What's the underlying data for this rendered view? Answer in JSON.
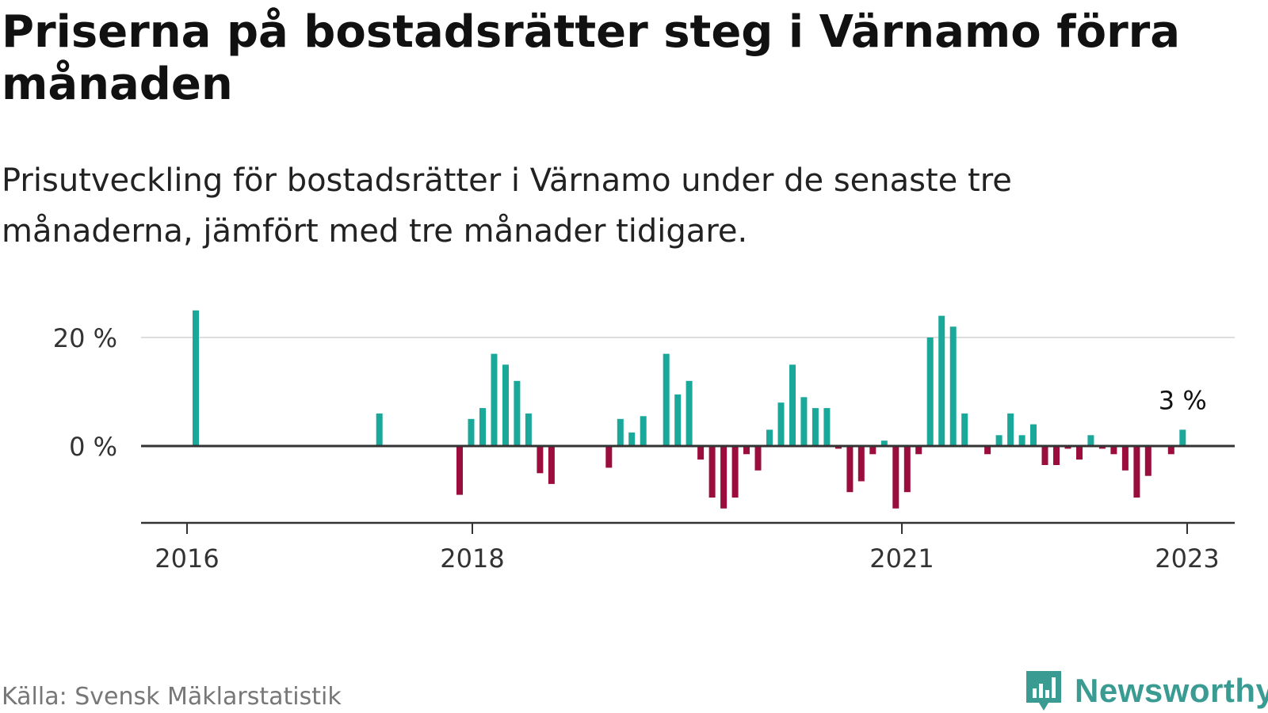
{
  "title": "Priserna på bostadsrätter steg i Värnamo förra månaden",
  "subtitle": "Prisutveckling för bostadsrätter i Värnamo under de senaste tre månaderna, jämfört med tre månader tidigare.",
  "source": "Källa: Svensk Mäklarstatistik",
  "brand": "Newsworthy",
  "colors": {
    "positive": "#1aa89a",
    "negative": "#9b0d3c",
    "grid": "#dddddd",
    "axis": "#333333",
    "brand": "#3a9b92"
  },
  "chart_data": {
    "type": "bar",
    "ylim": [
      -13,
      25
    ],
    "yticks": [
      0,
      20
    ],
    "ytick_labels": [
      "0 %",
      "20 %"
    ],
    "xtick_labels": [
      "2016",
      "2018",
      "2021",
      "2023"
    ],
    "annotation": "3 %",
    "series": [
      {
        "name": "Prisutveckling",
        "values": [
          25,
          null,
          null,
          null,
          null,
          null,
          null,
          null,
          null,
          null,
          null,
          null,
          null,
          null,
          null,
          null,
          6,
          null,
          null,
          null,
          null,
          null,
          null,
          -9,
          5,
          7,
          17,
          15,
          12,
          6,
          -5,
          -7,
          null,
          null,
          null,
          null,
          -4,
          5,
          2.5,
          5.5,
          null,
          17,
          9.5,
          12,
          -2.5,
          -9.5,
          -11.5,
          -9.5,
          -1.5,
          -4.5,
          3,
          8,
          15,
          9,
          7,
          7,
          -0.5,
          -8.5,
          -6.5,
          -1.5,
          1,
          -11.5,
          -8.5,
          -1.5,
          20,
          24,
          22,
          6,
          null,
          -1.5,
          2,
          6,
          2,
          4,
          -3.5,
          -3.5,
          -0.5,
          -2.5,
          2,
          -0.5,
          -1.5,
          -4.5,
          -9.5,
          -5.5,
          null,
          -1.5,
          3
        ]
      }
    ]
  }
}
